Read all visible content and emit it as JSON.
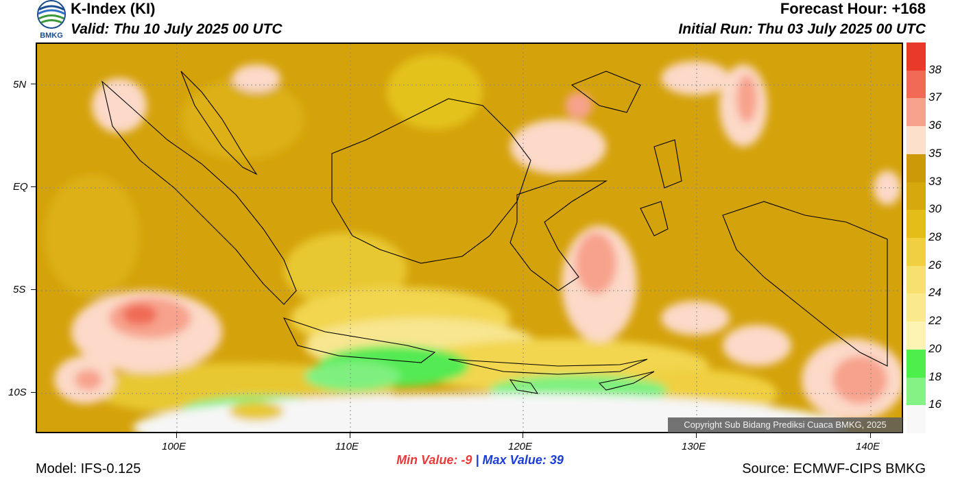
{
  "header": {
    "title": "K-Index (KI)",
    "valid": "Valid: Thu 10 July 2025 00 UTC",
    "forecast_hour": "Forecast Hour: +168",
    "initial_run": "Initial Run: Thu 03 July 2025 00 UTC",
    "logo_text": "BMKG"
  },
  "axes": {
    "lat_labels": [
      "5N",
      "EQ",
      "5S",
      "10S"
    ],
    "lon_labels": [
      "100E",
      "110E",
      "120E",
      "130E",
      "140E"
    ]
  },
  "legend": {
    "labels": [
      "38",
      "37",
      "36",
      "35",
      "33",
      "30",
      "28",
      "26",
      "24",
      "22",
      "20",
      "18",
      "16"
    ],
    "colors": [
      "#e8392a",
      "#f06a55",
      "#f7a28c",
      "#fde0cc",
      "#cc9a08",
      "#d6a80e",
      "#e4bd18",
      "#f0d040",
      "#f7e070",
      "#fbe98e",
      "#fdf3b3",
      "#4cef4c",
      "#84f284",
      "#f8f8f8"
    ]
  },
  "stats": {
    "min_label": "Min Value:",
    "min_value": "-9",
    "separator": "|",
    "max_label": "Max Value:",
    "max_value": "39"
  },
  "footer": {
    "model": "Model: IFS-0.125",
    "source": "Source: ECMWF-CIPS BMKG",
    "copyright": "Copyright Sub Bidang Prediksi Cuaca BMKG, 2025"
  }
}
